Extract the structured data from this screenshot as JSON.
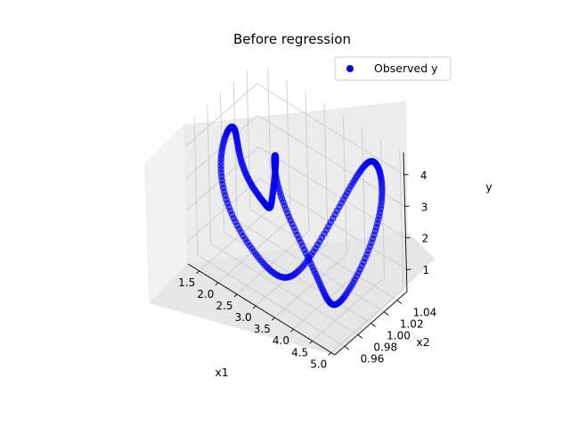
{
  "chart_data": {
    "type": "scatter",
    "projection": "3d",
    "title": "Before regression",
    "xlabel": "x1",
    "ylabel": "x2",
    "zlabel": "y",
    "xlim": [
      1.2,
      5.1
    ],
    "ylim": [
      0.945,
      1.055
    ],
    "zlim": [
      0.3,
      4.7
    ],
    "x_ticks": [
      "1.5",
      "2.0",
      "2.5",
      "3.0",
      "3.5",
      "4.0",
      "4.5",
      "5.0"
    ],
    "y_ticks": [
      "0.96",
      "0.98",
      "1.00",
      "1.02",
      "1.04"
    ],
    "z_ticks": [
      "1",
      "2",
      "3",
      "4"
    ],
    "grid": true,
    "legend_position": "top-right",
    "series": [
      {
        "name": "Observed y",
        "color": "#0000ff",
        "marker": "circle",
        "alpha": 0.6,
        "shape": "closed helical curve",
        "x_range": [
          1.3,
          4.9
        ],
        "y_range": [
          0.955,
          1.045
        ],
        "z_range": [
          0.6,
          4.4
        ]
      }
    ]
  }
}
